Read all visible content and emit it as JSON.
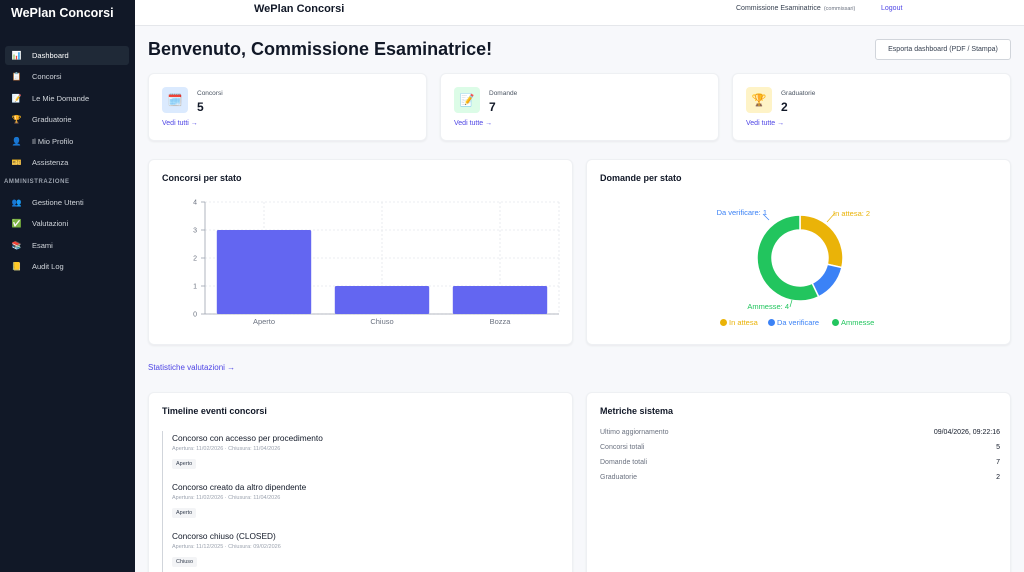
{
  "sidebar": {
    "brand": "WePlan Concorsi",
    "items": [
      {
        "label": "Dashboard",
        "icon": "bar-chart-icon",
        "glyph": "📊",
        "active": true
      },
      {
        "label": "Concorsi",
        "icon": "clipboard-icon",
        "glyph": "📋"
      },
      {
        "label": "Le Mie Domande",
        "icon": "memo-icon",
        "glyph": "📝"
      },
      {
        "label": "Graduatorie",
        "icon": "trophy-icon",
        "glyph": "🏆"
      },
      {
        "label": "Il Mio Profilo",
        "icon": "user-icon",
        "glyph": "👤"
      },
      {
        "label": "Assistenza",
        "icon": "ticket-icon",
        "glyph": "🎫"
      }
    ],
    "admin_section": "AMMINISTRAZIONE",
    "admin_items": [
      {
        "label": "Gestione Utenti",
        "icon": "users-icon",
        "glyph": "👥"
      },
      {
        "label": "Valutazioni",
        "icon": "checkmark-icon",
        "glyph": "✅"
      },
      {
        "label": "Esami",
        "icon": "books-icon",
        "glyph": "📚"
      },
      {
        "label": "Audit Log",
        "icon": "ledger-icon",
        "glyph": "📒"
      }
    ]
  },
  "topbar": {
    "title": "WePlan Concorsi",
    "user_name": "Commissione Esaminatrice",
    "user_role": "(commissari)",
    "logout": "Logout"
  },
  "header": {
    "title": "Benvenuto, Commissione Esaminatrice!",
    "export_button": "Esporta dashboard (PDF / Stampa)"
  },
  "stats": [
    {
      "label": "Concorsi",
      "value": "5",
      "link": "Vedi tutti →",
      "icon": "calendar-icon",
      "glyph": "🗓️",
      "bg": "#dbeafe"
    },
    {
      "label": "Domande",
      "value": "7",
      "link": "Vedi tutte →",
      "icon": "pencil-icon",
      "glyph": "📝",
      "bg": "#dcfce7"
    },
    {
      "label": "Graduatorie",
      "value": "2",
      "link": "Vedi tutte →",
      "icon": "trophy-icon",
      "glyph": "🏆",
      "bg": "#fef3c7"
    }
  ],
  "charts": {
    "bar_title": "Concorsi per stato",
    "donut_title": "Domande per stato"
  },
  "chart_data": [
    {
      "type": "bar",
      "title": "Concorsi per stato",
      "categories": [
        "Aperto",
        "Chiuso",
        "Bozza"
      ],
      "values": [
        3,
        1,
        1
      ],
      "ylim": [
        0,
        4
      ],
      "yticks": [
        0,
        1,
        2,
        3,
        4
      ],
      "color": "#6366f1",
      "grid": true
    },
    {
      "type": "pie",
      "donut": true,
      "title": "Domande per stato",
      "categories": [
        "In attesa",
        "Da verificare",
        "Ammesse"
      ],
      "values": [
        2,
        1,
        4
      ],
      "colors": [
        "#eab308",
        "#3b82f6",
        "#22c55e"
      ],
      "data_labels": [
        "In attesa: 2",
        "Da verificare: 1",
        "Ammesse: 4"
      ],
      "legend_position": "bottom"
    }
  ],
  "stats_link": "Statistiche valutazioni →",
  "timeline": {
    "title": "Timeline eventi concorsi",
    "items": [
      {
        "title": "Concorso con accesso per procedimento",
        "dates": "Apertura: 11/02/2026 · Chiusura: 11/04/2026",
        "status": "Aperto"
      },
      {
        "title": "Concorso creato da altro dipendente",
        "dates": "Apertura: 11/02/2026 · Chiusura: 11/04/2026",
        "status": "Aperto"
      },
      {
        "title": "Concorso chiuso (CLOSED)",
        "dates": "Apertura: 11/12/2025 · Chiusura: 09/02/2026",
        "status": "Chiuso"
      }
    ]
  },
  "metrics": {
    "title": "Metriche sistema",
    "rows": [
      {
        "label": "Ultimo aggiornamento",
        "value": "09/04/2026, 09:22:16"
      },
      {
        "label": "Concorsi totali",
        "value": "5"
      },
      {
        "label": "Domande totali",
        "value": "7"
      },
      {
        "label": "Graduatorie",
        "value": "2"
      }
    ]
  }
}
